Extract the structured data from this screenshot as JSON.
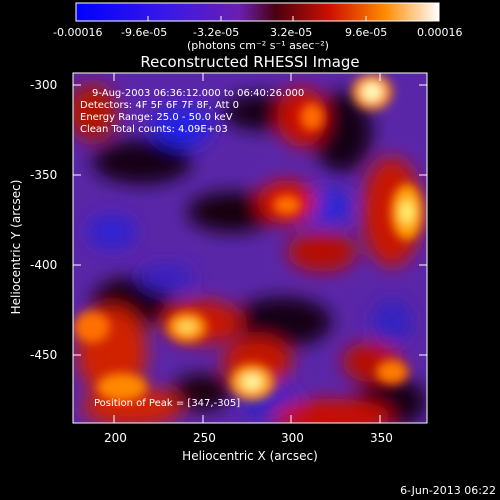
{
  "colorbar": {
    "ticks": [
      "-0.00016",
      "-9.6e-05",
      "-3.2e-05",
      "3.2e-05",
      "9.6e-05",
      "0.00016"
    ],
    "unit_label": "(photons cm⁻² s⁻¹ asec⁻²)"
  },
  "plot": {
    "title": "Reconstructed RHESSI Image",
    "xlabel": "Heliocentric X (arcsec)",
    "ylabel": "Heliocentric Y (arcsec)",
    "xticks": [
      "200",
      "250",
      "300",
      "350"
    ],
    "yticks": [
      "-300",
      "-350",
      "-400",
      "-450"
    ],
    "xrange": [
      180,
      372
    ],
    "yrange": [
      -487,
      -292
    ]
  },
  "overlay": {
    "line1": "9-Aug-2003 06:36:12.000 to 06:40:26.000",
    "line2": "Detectors: 4F 5F 6F 7F 8F, Att 0",
    "line3": "Energy Range: 25.0 - 50.0 keV",
    "line4": "Clean     Total counts: 4.09E+03",
    "peak": "Position of Peak = [347,-305]"
  },
  "footer": {
    "timestamp": "6-Jun-2013 06:22"
  },
  "colors": {
    "negative": "#1010ff",
    "mid": "#6a2fb8",
    "hot": "#ffffff",
    "positive": "#ff2a00"
  }
}
